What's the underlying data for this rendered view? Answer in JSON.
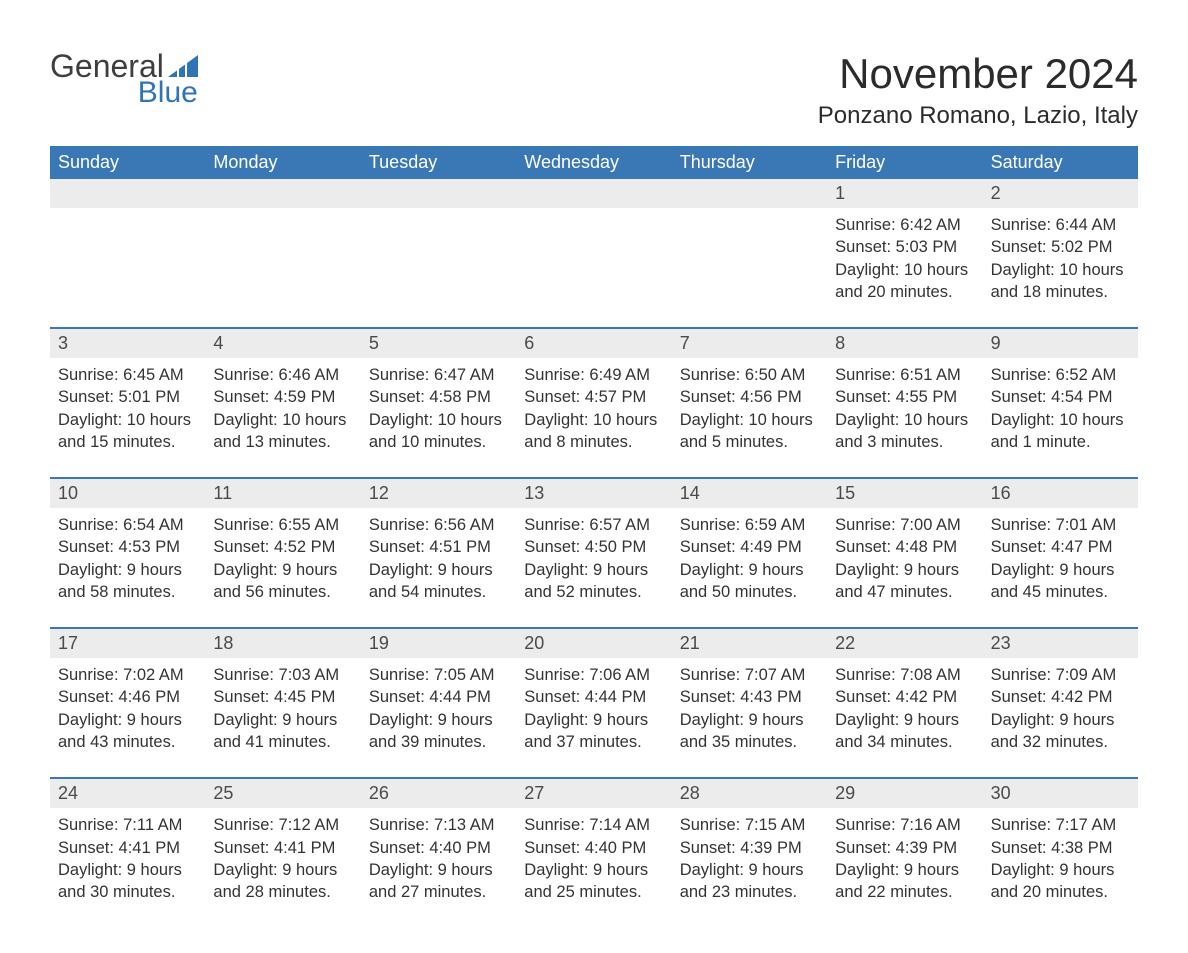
{
  "logo": {
    "text_general": "General",
    "text_blue": "Blue",
    "general_color": "#3e3e3e",
    "blue_color": "#2f74b5",
    "icon_color": "#2f74b5"
  },
  "header": {
    "month_title": "November 2024",
    "location": "Ponzano Romano, Lazio, Italy"
  },
  "colors": {
    "header_bg": "#3a78b5",
    "header_text": "#ffffff",
    "daynum_bg": "#ececec",
    "daynum_text": "#4a4a4a",
    "week_border": "#3a78b5",
    "body_text": "#333333",
    "page_bg": "#ffffff"
  },
  "day_names": [
    "Sunday",
    "Monday",
    "Tuesday",
    "Wednesday",
    "Thursday",
    "Friday",
    "Saturday"
  ],
  "weeks": [
    {
      "days": [
        null,
        null,
        null,
        null,
        null,
        {
          "num": "1",
          "sunrise": "Sunrise: 6:42 AM",
          "sunset": "Sunset: 5:03 PM",
          "daylight1": "Daylight: 10 hours",
          "daylight2": "and 20 minutes."
        },
        {
          "num": "2",
          "sunrise": "Sunrise: 6:44 AM",
          "sunset": "Sunset: 5:02 PM",
          "daylight1": "Daylight: 10 hours",
          "daylight2": "and 18 minutes."
        }
      ]
    },
    {
      "days": [
        {
          "num": "3",
          "sunrise": "Sunrise: 6:45 AM",
          "sunset": "Sunset: 5:01 PM",
          "daylight1": "Daylight: 10 hours",
          "daylight2": "and 15 minutes."
        },
        {
          "num": "4",
          "sunrise": "Sunrise: 6:46 AM",
          "sunset": "Sunset: 4:59 PM",
          "daylight1": "Daylight: 10 hours",
          "daylight2": "and 13 minutes."
        },
        {
          "num": "5",
          "sunrise": "Sunrise: 6:47 AM",
          "sunset": "Sunset: 4:58 PM",
          "daylight1": "Daylight: 10 hours",
          "daylight2": "and 10 minutes."
        },
        {
          "num": "6",
          "sunrise": "Sunrise: 6:49 AM",
          "sunset": "Sunset: 4:57 PM",
          "daylight1": "Daylight: 10 hours",
          "daylight2": "and 8 minutes."
        },
        {
          "num": "7",
          "sunrise": "Sunrise: 6:50 AM",
          "sunset": "Sunset: 4:56 PM",
          "daylight1": "Daylight: 10 hours",
          "daylight2": "and 5 minutes."
        },
        {
          "num": "8",
          "sunrise": "Sunrise: 6:51 AM",
          "sunset": "Sunset: 4:55 PM",
          "daylight1": "Daylight: 10 hours",
          "daylight2": "and 3 minutes."
        },
        {
          "num": "9",
          "sunrise": "Sunrise: 6:52 AM",
          "sunset": "Sunset: 4:54 PM",
          "daylight1": "Daylight: 10 hours",
          "daylight2": "and 1 minute."
        }
      ]
    },
    {
      "days": [
        {
          "num": "10",
          "sunrise": "Sunrise: 6:54 AM",
          "sunset": "Sunset: 4:53 PM",
          "daylight1": "Daylight: 9 hours",
          "daylight2": "and 58 minutes."
        },
        {
          "num": "11",
          "sunrise": "Sunrise: 6:55 AM",
          "sunset": "Sunset: 4:52 PM",
          "daylight1": "Daylight: 9 hours",
          "daylight2": "and 56 minutes."
        },
        {
          "num": "12",
          "sunrise": "Sunrise: 6:56 AM",
          "sunset": "Sunset: 4:51 PM",
          "daylight1": "Daylight: 9 hours",
          "daylight2": "and 54 minutes."
        },
        {
          "num": "13",
          "sunrise": "Sunrise: 6:57 AM",
          "sunset": "Sunset: 4:50 PM",
          "daylight1": "Daylight: 9 hours",
          "daylight2": "and 52 minutes."
        },
        {
          "num": "14",
          "sunrise": "Sunrise: 6:59 AM",
          "sunset": "Sunset: 4:49 PM",
          "daylight1": "Daylight: 9 hours",
          "daylight2": "and 50 minutes."
        },
        {
          "num": "15",
          "sunrise": "Sunrise: 7:00 AM",
          "sunset": "Sunset: 4:48 PM",
          "daylight1": "Daylight: 9 hours",
          "daylight2": "and 47 minutes."
        },
        {
          "num": "16",
          "sunrise": "Sunrise: 7:01 AM",
          "sunset": "Sunset: 4:47 PM",
          "daylight1": "Daylight: 9 hours",
          "daylight2": "and 45 minutes."
        }
      ]
    },
    {
      "days": [
        {
          "num": "17",
          "sunrise": "Sunrise: 7:02 AM",
          "sunset": "Sunset: 4:46 PM",
          "daylight1": "Daylight: 9 hours",
          "daylight2": "and 43 minutes."
        },
        {
          "num": "18",
          "sunrise": "Sunrise: 7:03 AM",
          "sunset": "Sunset: 4:45 PM",
          "daylight1": "Daylight: 9 hours",
          "daylight2": "and 41 minutes."
        },
        {
          "num": "19",
          "sunrise": "Sunrise: 7:05 AM",
          "sunset": "Sunset: 4:44 PM",
          "daylight1": "Daylight: 9 hours",
          "daylight2": "and 39 minutes."
        },
        {
          "num": "20",
          "sunrise": "Sunrise: 7:06 AM",
          "sunset": "Sunset: 4:44 PM",
          "daylight1": "Daylight: 9 hours",
          "daylight2": "and 37 minutes."
        },
        {
          "num": "21",
          "sunrise": "Sunrise: 7:07 AM",
          "sunset": "Sunset: 4:43 PM",
          "daylight1": "Daylight: 9 hours",
          "daylight2": "and 35 minutes."
        },
        {
          "num": "22",
          "sunrise": "Sunrise: 7:08 AM",
          "sunset": "Sunset: 4:42 PM",
          "daylight1": "Daylight: 9 hours",
          "daylight2": "and 34 minutes."
        },
        {
          "num": "23",
          "sunrise": "Sunrise: 7:09 AM",
          "sunset": "Sunset: 4:42 PM",
          "daylight1": "Daylight: 9 hours",
          "daylight2": "and 32 minutes."
        }
      ]
    },
    {
      "days": [
        {
          "num": "24",
          "sunrise": "Sunrise: 7:11 AM",
          "sunset": "Sunset: 4:41 PM",
          "daylight1": "Daylight: 9 hours",
          "daylight2": "and 30 minutes."
        },
        {
          "num": "25",
          "sunrise": "Sunrise: 7:12 AM",
          "sunset": "Sunset: 4:41 PM",
          "daylight1": "Daylight: 9 hours",
          "daylight2": "and 28 minutes."
        },
        {
          "num": "26",
          "sunrise": "Sunrise: 7:13 AM",
          "sunset": "Sunset: 4:40 PM",
          "daylight1": "Daylight: 9 hours",
          "daylight2": "and 27 minutes."
        },
        {
          "num": "27",
          "sunrise": "Sunrise: 7:14 AM",
          "sunset": "Sunset: 4:40 PM",
          "daylight1": "Daylight: 9 hours",
          "daylight2": "and 25 minutes."
        },
        {
          "num": "28",
          "sunrise": "Sunrise: 7:15 AM",
          "sunset": "Sunset: 4:39 PM",
          "daylight1": "Daylight: 9 hours",
          "daylight2": "and 23 minutes."
        },
        {
          "num": "29",
          "sunrise": "Sunrise: 7:16 AM",
          "sunset": "Sunset: 4:39 PM",
          "daylight1": "Daylight: 9 hours",
          "daylight2": "and 22 minutes."
        },
        {
          "num": "30",
          "sunrise": "Sunrise: 7:17 AM",
          "sunset": "Sunset: 4:38 PM",
          "daylight1": "Daylight: 9 hours",
          "daylight2": "and 20 minutes."
        }
      ]
    }
  ]
}
